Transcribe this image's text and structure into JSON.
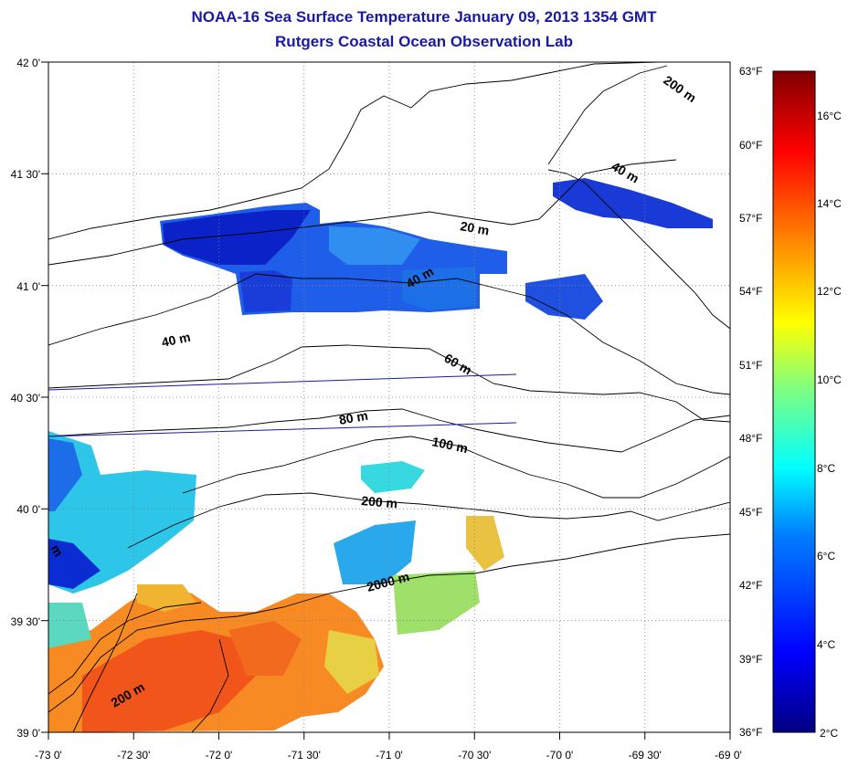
{
  "title": "NOAA-16 Sea Surface Temperature January 09, 2013 1354 GMT",
  "subtitle": "Rutgers Coastal Ocean Observation Lab",
  "map": {
    "lon_labels": [
      "-73 0'",
      "-72 30'",
      "-72 0'",
      "-71 30'",
      "-71 0'",
      "-70 30'",
      "-70 0'",
      "-69 30'",
      "-69 0'"
    ],
    "lat_labels": [
      "42 0'",
      "41 30'",
      "41 0'",
      "40 30'",
      "40 0'",
      "39 30'",
      "39 0'"
    ],
    "lon_range": [
      -73,
      -69
    ],
    "lat_range": [
      39,
      42
    ],
    "contour_labels": [
      {
        "id": "c200-top",
        "text": "200 m"
      },
      {
        "id": "c40-ne",
        "text": "40 m"
      },
      {
        "id": "c20",
        "text": "20 m"
      },
      {
        "id": "c40-mid",
        "text": "40 m"
      },
      {
        "id": "c40-west",
        "text": "40 m"
      },
      {
        "id": "c60",
        "text": "60 m"
      },
      {
        "id": "c80",
        "text": "80 m"
      },
      {
        "id": "c100",
        "text": "100 m"
      },
      {
        "id": "c200",
        "text": "200 m"
      },
      {
        "id": "c2000",
        "text": "2000 m"
      },
      {
        "id": "c200-sw",
        "text": "200 m"
      },
      {
        "id": "cm-edge",
        "text": "m"
      }
    ]
  },
  "colorbar": {
    "fahrenheit_labels": [
      "63°F",
      "60°F",
      "57°F",
      "54°F",
      "51°F",
      "48°F",
      "45°F",
      "42°F",
      "39°F",
      "36°F"
    ],
    "celsius_labels": [
      "16°C",
      "14°C",
      "12°C",
      "10°C",
      "8°C",
      "6°C",
      "4°C",
      "2°C"
    ],
    "range_celsius": [
      2,
      17.2
    ],
    "colors": [
      "#000080",
      "#0000ff",
      "#0080ff",
      "#00ffff",
      "#80ff80",
      "#ffff00",
      "#ff8000",
      "#ff0000",
      "#800000"
    ]
  }
}
